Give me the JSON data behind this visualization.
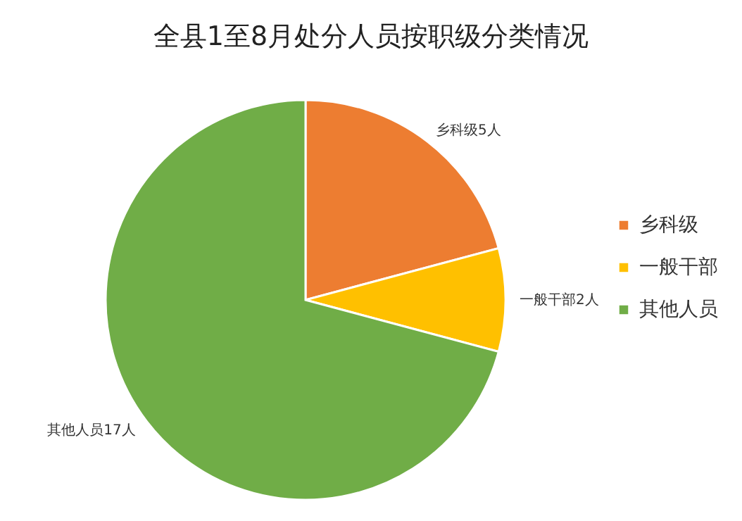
{
  "chart_data": {
    "type": "pie",
    "title": "全县1至8月处分人员按职级分类情况",
    "categories": [
      "乡科级",
      "一般干部",
      "其他人员"
    ],
    "values": [
      5,
      2,
      17
    ],
    "colors": [
      "#ed7d31",
      "#ffc000",
      "#70ad47"
    ],
    "value_labels": [
      "乡科级5人",
      "一般干部2人",
      "其他人员17人"
    ],
    "legend": "right"
  }
}
